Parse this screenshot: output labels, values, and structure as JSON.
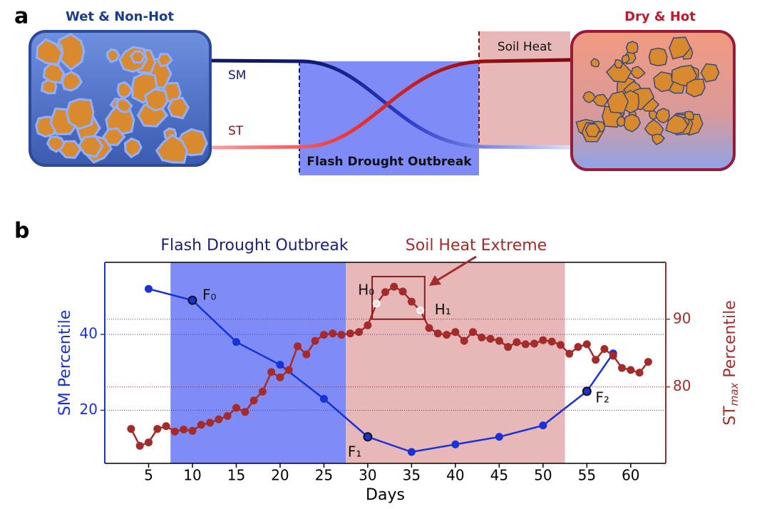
{
  "panel_labels": {
    "a": "a",
    "b": "b"
  },
  "schematic": {
    "left_state": "Wet & Non-Hot",
    "right_state": "Dry & Hot",
    "sm_label": "SM",
    "st_label": "ST",
    "soil_heat": "Soil Heat",
    "outbreak": "Flash Drought Outbreak"
  },
  "chart_data": {
    "type": "line",
    "xlabel": "Days",
    "ylabel": "SM Percentile",
    "y2label": {
      "base": "ST",
      "sub": "max",
      "rest": " Percentile"
    },
    "xlim": [
      0,
      64
    ],
    "xticks": [
      5,
      10,
      15,
      20,
      25,
      30,
      35,
      40,
      45,
      50,
      55,
      60
    ],
    "ylim": [
      6,
      59
    ],
    "yticks": [
      20,
      40
    ],
    "y2lim": [
      68.7,
      98.4
    ],
    "y2ticks": [
      80,
      90
    ],
    "grid": true,
    "spans": [
      {
        "name": "Flash Drought Outbreak",
        "x": [
          7.5,
          27.5
        ],
        "color": "#7f8cf7"
      },
      {
        "name": "Soil Heat Extreme",
        "x": [
          27.5,
          52.5
        ],
        "color": "#e8b8b9"
      }
    ],
    "series": [
      {
        "name": "SM",
        "color": "#1632d8",
        "axis": "y",
        "x": [
          5,
          10,
          15,
          20,
          25,
          30,
          35,
          40,
          45,
          50,
          55,
          58
        ],
        "values": [
          52,
          49,
          38,
          32,
          23,
          13,
          9,
          11,
          13,
          16,
          25,
          35
        ]
      },
      {
        "name": "ST",
        "color": "#a52a2a",
        "axis": "y2",
        "x": [
          3,
          4,
          5,
          6,
          7,
          8,
          9,
          10,
          11,
          12,
          13,
          14,
          15,
          16,
          17,
          18,
          19,
          20,
          21,
          22,
          23,
          24,
          25,
          26,
          27,
          28,
          29,
          30,
          31,
          32,
          33,
          34,
          35,
          36,
          37,
          38,
          39,
          40,
          41,
          42,
          43,
          44,
          45,
          46,
          47,
          48,
          49,
          50,
          51,
          52,
          53,
          54,
          55,
          56,
          57,
          58,
          59,
          60,
          61,
          62
        ],
        "values": [
          73.8,
          71.3,
          71.8,
          73.8,
          74.2,
          73.4,
          73.7,
          73.5,
          74.4,
          74.7,
          75.2,
          75.7,
          76.9,
          76.3,
          78.0,
          79.3,
          82.2,
          81.4,
          82.5,
          86.0,
          84.8,
          86.8,
          87.7,
          87.9,
          87.7,
          87.9,
          88.1,
          89.1,
          92.3,
          94.0,
          94.8,
          94.1,
          92.6,
          91.3,
          88.7,
          87.9,
          87.7,
          88.1,
          86.8,
          88.1,
          87.3,
          87.1,
          86.8,
          85.9,
          86.6,
          86.3,
          86.4,
          86.9,
          86.7,
          86.2,
          84.9,
          85.9,
          86.3,
          84.0,
          85.6,
          84.6,
          82.8,
          82.5,
          82.1,
          83.7
        ]
      }
    ],
    "annotations": [
      {
        "text": "F₀",
        "x": 10,
        "y": 49,
        "axis": "y"
      },
      {
        "text": "F₁",
        "x": 30,
        "y": 13,
        "axis": "y"
      },
      {
        "text": "F₂",
        "x": 55,
        "y": 25,
        "axis": "y"
      },
      {
        "text": "H₀",
        "x": 31,
        "y": 92.3,
        "axis": "y2"
      },
      {
        "text": "H₁",
        "x": 36,
        "y": 91.3,
        "axis": "y2"
      }
    ],
    "box": {
      "x": [
        30.5,
        36.5
      ],
      "y2": [
        90,
        96.3
      ]
    }
  }
}
